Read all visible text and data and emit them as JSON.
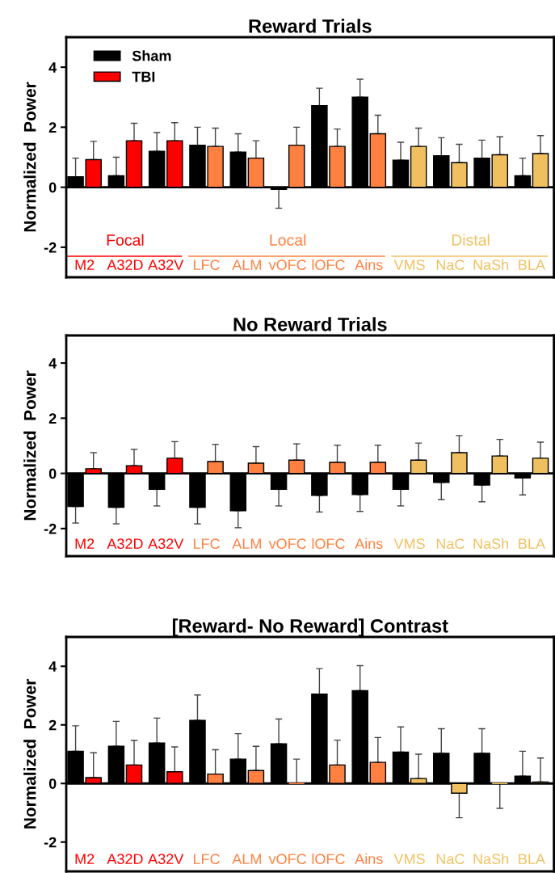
{
  "chart_data": [
    {
      "type": "bar",
      "title": "Reward Trials",
      "ylabel": "Normalized  Power",
      "legend": "top left",
      "categories": [
        "M2",
        "A32D",
        "A32V",
        "LFC",
        "ALM",
        "vOFC",
        "lOFC",
        "Ains",
        "VMS",
        "NaC",
        "NaSh",
        "BLA"
      ],
      "ylim": [
        -3,
        5
      ],
      "yticks": [
        -2,
        0,
        2,
        4
      ],
      "annotations": [
        "Focal",
        "Local",
        "Distal"
      ],
      "series": [
        {
          "name": "Sham",
          "color": "#000000",
          "values": [
            0.35,
            0.38,
            1.2,
            1.4,
            1.17,
            -0.07,
            2.72,
            3.0,
            0.9,
            1.05,
            0.97,
            0.38
          ],
          "errors": [
            [
              0.35,
              0.97
            ],
            [
              0.38,
              1.0
            ],
            [
              1.2,
              1.82
            ],
            [
              1.4,
              2.0
            ],
            [
              1.17,
              1.78
            ],
            [
              -0.7,
              -0.07
            ],
            [
              2.72,
              3.3
            ],
            [
              3.0,
              3.6
            ],
            [
              0.9,
              1.5
            ],
            [
              1.05,
              1.65
            ],
            [
              0.97,
              1.57
            ],
            [
              0.38,
              0.97
            ]
          ]
        },
        {
          "name": "TBI",
          "color": "#ff0000",
          "colors": [
            "#ff0000",
            "#ff0000",
            "#ff0000",
            "#ff8040",
            "#ff8040",
            "#ff8040",
            "#ff8040",
            "#ff8040",
            "#f0c060",
            "#f0c060",
            "#f0c060",
            "#f0c060"
          ],
          "values": [
            0.92,
            1.55,
            1.55,
            1.36,
            0.97,
            1.4,
            1.36,
            1.78,
            1.36,
            0.82,
            1.08,
            1.12
          ],
          "errors": [
            [
              0.92,
              1.53
            ],
            [
              1.55,
              2.13
            ],
            [
              1.55,
              2.15
            ],
            [
              1.36,
              1.97
            ],
            [
              0.97,
              1.55
            ],
            [
              1.4,
              2.0
            ],
            [
              1.36,
              1.94
            ],
            [
              1.78,
              2.4
            ],
            [
              1.36,
              1.97
            ],
            [
              0.82,
              1.43
            ],
            [
              1.08,
              1.68
            ],
            [
              1.12,
              1.72
            ]
          ]
        }
      ]
    },
    {
      "type": "bar",
      "title": "No Reward Trials",
      "ylabel": "Normalized  Power",
      "categories": [
        "M2",
        "A32D",
        "A32V",
        "LFC",
        "ALM",
        "vOFC",
        "lOFC",
        "Ains",
        "VMS",
        "NaC",
        "NaSh",
        "BLA"
      ],
      "ylim": [
        -3,
        5
      ],
      "yticks": [
        -2,
        0,
        2,
        4
      ],
      "series": [
        {
          "color": "#000000",
          "values": [
            -1.2,
            -1.23,
            -0.58,
            -1.23,
            -1.35,
            -0.58,
            -0.8,
            -0.77,
            -0.58,
            -0.33,
            -0.42,
            -0.17
          ],
          "errors": [
            [
              -1.8,
              -1.2
            ],
            [
              -1.83,
              -1.23
            ],
            [
              -1.18,
              -0.58
            ],
            [
              -1.83,
              -1.23
            ],
            [
              -1.97,
              -1.35
            ],
            [
              -1.18,
              -0.58
            ],
            [
              -1.4,
              -0.8
            ],
            [
              -1.38,
              -0.77
            ],
            [
              -1.18,
              -0.58
            ],
            [
              -0.95,
              -0.33
            ],
            [
              -1.03,
              -0.42
            ],
            [
              -0.78,
              -0.17
            ]
          ]
        },
        {
          "colors": [
            "#ff0000",
            "#ff0000",
            "#ff0000",
            "#ff8040",
            "#ff8040",
            "#ff8040",
            "#ff8040",
            "#ff8040",
            "#f0c060",
            "#f0c060",
            "#f0c060",
            "#f0c060"
          ],
          "values": [
            0.17,
            0.28,
            0.55,
            0.43,
            0.37,
            0.48,
            0.4,
            0.4,
            0.48,
            0.75,
            0.63,
            0.55
          ],
          "errors": [
            [
              0.17,
              0.75
            ],
            [
              0.28,
              0.87
            ],
            [
              0.55,
              1.15
            ],
            [
              0.43,
              1.05
            ],
            [
              0.37,
              0.97
            ],
            [
              0.48,
              1.07
            ],
            [
              0.4,
              1.02
            ],
            [
              0.4,
              1.02
            ],
            [
              0.48,
              1.1
            ],
            [
              0.75,
              1.37
            ],
            [
              0.63,
              1.23
            ],
            [
              0.55,
              1.13
            ]
          ]
        }
      ]
    },
    {
      "type": "bar",
      "title": "[Reward- No Reward] Contrast",
      "ylabel": "Normalized  Power",
      "categories": [
        "M2",
        "A32D",
        "A32V",
        "LFC",
        "ALM",
        "vOFC",
        "lOFC",
        "Ains",
        "VMS",
        "NaC",
        "NaSh",
        "BLA"
      ],
      "ylim": [
        -3,
        5
      ],
      "yticks": [
        -2,
        0,
        2,
        4
      ],
      "series": [
        {
          "color": "#000000",
          "values": [
            1.1,
            1.27,
            1.38,
            2.15,
            0.83,
            1.35,
            3.05,
            3.17,
            1.07,
            1.03,
            1.03,
            0.25
          ],
          "errors": [
            [
              1.1,
              1.97
            ],
            [
              1.27,
              2.12
            ],
            [
              1.38,
              2.23
            ],
            [
              2.15,
              3.02
            ],
            [
              0.83,
              1.7
            ],
            [
              1.35,
              2.2
            ],
            [
              3.05,
              3.92
            ],
            [
              3.17,
              4.02
            ],
            [
              1.07,
              1.93
            ],
            [
              1.03,
              1.87
            ],
            [
              1.03,
              1.87
            ],
            [
              0.25,
              1.1
            ]
          ]
        },
        {
          "colors": [
            "#ff0000",
            "#ff0000",
            "#ff0000",
            "#ff8040",
            "#ff8040",
            "#ff8040",
            "#ff8040",
            "#ff8040",
            "#f0c060",
            "#f0c060",
            "#f0c060",
            "#f0c060"
          ],
          "values": [
            0.2,
            0.63,
            0.4,
            0.32,
            0.44,
            0.0,
            0.63,
            0.72,
            0.17,
            -0.33,
            0.0,
            0.05
          ],
          "errors": [
            [
              0.2,
              1.05
            ],
            [
              0.63,
              1.47
            ],
            [
              0.4,
              1.25
            ],
            [
              0.32,
              1.15
            ],
            [
              0.44,
              1.27
            ],
            [
              0.0,
              0.83
            ],
            [
              0.63,
              1.48
            ],
            [
              0.72,
              1.57
            ],
            [
              0.17,
              1.0
            ],
            [
              -1.17,
              -0.33
            ],
            [
              -0.85,
              0.0
            ],
            [
              0.05,
              0.87
            ]
          ]
        }
      ]
    }
  ]
}
